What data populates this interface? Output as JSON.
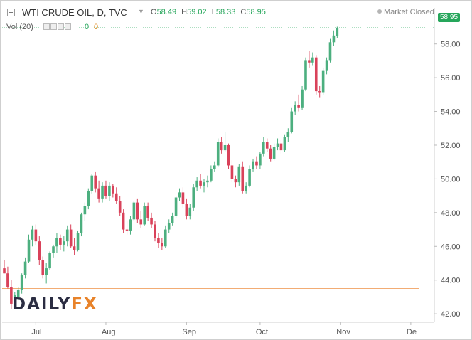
{
  "header": {
    "title": "WTI CRUDE OIL, D, TVC",
    "ohlc": [
      {
        "k": "O",
        "v": "58.49"
      },
      {
        "k": "H",
        "v": "59.02"
      },
      {
        "k": "L",
        "v": "58.33"
      },
      {
        "k": "C",
        "v": "58.95"
      }
    ],
    "market_status": "Market Closed"
  },
  "volume": {
    "label": "Vol (20)",
    "value_a": "0",
    "value_b": "0"
  },
  "last_price_label": "58.95",
  "logo": {
    "part1": "DAILY",
    "part2": "FX"
  },
  "colors": {
    "up": "#4caf7f",
    "down": "#d9425a",
    "support": "#f0a060",
    "axis_text": "#555555",
    "grid": "#eeeeee",
    "last_price": "#26a65b"
  },
  "chart_data": {
    "type": "candlestick",
    "title": "WTI CRUDE OIL, D, TVC",
    "ylim": [
      41.5,
      59.8
    ],
    "yticks": [
      42.0,
      44.0,
      46.0,
      48.0,
      50.0,
      52.0,
      54.0,
      56.0,
      58.0
    ],
    "ytick_labels": [
      "42.00",
      "44.00",
      "46.00",
      "48.00",
      "50.00",
      "52.00",
      "54.00",
      "56.00",
      "58.00"
    ],
    "xticks": [
      {
        "label": "Jul",
        "index": 9
      },
      {
        "label": "Aug",
        "index": 29
      },
      {
        "label": "Sep",
        "index": 52
      },
      {
        "label": "Oct",
        "index": 73
      },
      {
        "label": "Nov",
        "index": 96
      },
      {
        "label": "De",
        "index": 116
      }
    ],
    "support_level": 43.5,
    "last_price": 58.95,
    "grid": false,
    "candles": [
      [
        44.7,
        45.2,
        44.4,
        44.4
      ],
      [
        44.4,
        44.8,
        43.5,
        43.6
      ],
      [
        43.6,
        44.0,
        42.3,
        42.6
      ],
      [
        42.6,
        43.3,
        42.4,
        43.1
      ],
      [
        43.0,
        43.6,
        42.8,
        43.4
      ],
      [
        43.4,
        44.4,
        43.2,
        44.3
      ],
      [
        44.3,
        45.3,
        44.1,
        45.1
      ],
      [
        45.1,
        46.7,
        45.0,
        46.4
      ],
      [
        46.4,
        47.2,
        46.0,
        47.0
      ],
      [
        47.0,
        47.3,
        46.1,
        46.3
      ],
      [
        46.3,
        46.6,
        44.9,
        45.2
      ],
      [
        45.2,
        45.4,
        44.1,
        44.3
      ],
      [
        44.3,
        45.0,
        43.8,
        44.7
      ],
      [
        44.7,
        45.7,
        44.6,
        45.6
      ],
      [
        45.6,
        46.1,
        45.3,
        46.0
      ],
      [
        46.0,
        46.8,
        45.6,
        46.5
      ],
      [
        46.5,
        46.7,
        45.8,
        46.1
      ],
      [
        46.1,
        46.6,
        45.7,
        46.3
      ],
      [
        46.3,
        47.2,
        46.0,
        47.0
      ],
      [
        47.0,
        47.3,
        45.9,
        46.0
      ],
      [
        46.0,
        46.5,
        45.5,
        45.8
      ],
      [
        45.8,
        46.9,
        45.7,
        46.8
      ],
      [
        46.8,
        48.0,
        46.6,
        47.9
      ],
      [
        47.9,
        48.6,
        47.5,
        48.4
      ],
      [
        48.4,
        49.4,
        48.2,
        49.3
      ],
      [
        49.3,
        50.3,
        49.1,
        50.2
      ],
      [
        50.2,
        50.4,
        49.2,
        49.4
      ],
      [
        49.4,
        49.9,
        48.6,
        48.8
      ],
      [
        48.8,
        49.8,
        48.6,
        49.6
      ],
      [
        49.6,
        49.9,
        48.8,
        49.0
      ],
      [
        49.0,
        49.8,
        48.7,
        49.6
      ],
      [
        49.6,
        49.7,
        48.9,
        49.1
      ],
      [
        49.1,
        49.5,
        48.5,
        48.7
      ],
      [
        48.7,
        49.0,
        47.8,
        48.0
      ],
      [
        48.0,
        48.2,
        46.8,
        47.0
      ],
      [
        47.0,
        47.5,
        46.7,
        46.9
      ],
      [
        46.9,
        47.8,
        46.7,
        47.6
      ],
      [
        47.6,
        48.7,
        47.5,
        48.6
      ],
      [
        48.6,
        48.8,
        47.4,
        47.6
      ],
      [
        47.6,
        48.1,
        47.1,
        47.3
      ],
      [
        47.3,
        48.6,
        47.2,
        48.4
      ],
      [
        48.4,
        48.6,
        47.5,
        47.7
      ],
      [
        47.7,
        48.0,
        47.1,
        47.3
      ],
      [
        47.3,
        47.5,
        46.3,
        46.5
      ],
      [
        46.5,
        46.8,
        45.9,
        46.2
      ],
      [
        46.2,
        46.5,
        45.8,
        46.0
      ],
      [
        46.0,
        47.2,
        45.9,
        47.0
      ],
      [
        47.0,
        47.6,
        46.8,
        47.4
      ],
      [
        47.4,
        48.0,
        47.2,
        47.8
      ],
      [
        47.8,
        49.0,
        47.7,
        48.9
      ],
      [
        48.9,
        49.4,
        48.7,
        49.2
      ],
      [
        49.2,
        49.5,
        48.3,
        48.5
      ],
      [
        48.5,
        48.8,
        47.6,
        47.8
      ],
      [
        47.8,
        48.5,
        47.6,
        48.3
      ],
      [
        48.3,
        49.7,
        48.1,
        49.5
      ],
      [
        49.5,
        50.1,
        49.3,
        49.9
      ],
      [
        49.9,
        50.3,
        49.4,
        49.6
      ],
      [
        49.6,
        50.0,
        49.2,
        49.8
      ],
      [
        49.8,
        50.2,
        49.5,
        49.9
      ],
      [
        49.9,
        50.8,
        49.8,
        50.6
      ],
      [
        50.6,
        51.0,
        50.4,
        50.8
      ],
      [
        50.8,
        52.4,
        50.7,
        52.2
      ],
      [
        52.2,
        52.5,
        51.5,
        51.7
      ],
      [
        51.7,
        52.8,
        51.6,
        52.0
      ],
      [
        52.0,
        52.1,
        50.6,
        50.8
      ],
      [
        50.8,
        51.1,
        49.8,
        50.0
      ],
      [
        50.0,
        50.2,
        49.5,
        49.8
      ],
      [
        49.8,
        50.9,
        49.6,
        50.7
      ],
      [
        50.7,
        51.0,
        49.1,
        49.3
      ],
      [
        49.3,
        49.8,
        49.1,
        49.6
      ],
      [
        49.6,
        50.8,
        49.5,
        50.6
      ],
      [
        50.6,
        51.2,
        50.4,
        51.0
      ],
      [
        51.0,
        51.3,
        50.6,
        50.8
      ],
      [
        50.8,
        51.6,
        50.6,
        51.5
      ],
      [
        51.5,
        52.5,
        51.3,
        52.2
      ],
      [
        52.2,
        52.4,
        51.6,
        51.8
      ],
      [
        51.8,
        52.0,
        51.0,
        51.2
      ],
      [
        51.2,
        52.1,
        51.1,
        51.9
      ],
      [
        51.9,
        52.4,
        51.7,
        52.1
      ],
      [
        52.1,
        52.3,
        51.5,
        51.7
      ],
      [
        51.7,
        52.6,
        51.6,
        52.5
      ],
      [
        52.5,
        53.0,
        52.2,
        52.8
      ],
      [
        52.8,
        54.2,
        52.7,
        54.0
      ],
      [
        54.0,
        54.6,
        53.8,
        54.4
      ],
      [
        54.4,
        55.0,
        54.0,
        54.2
      ],
      [
        54.2,
        55.5,
        54.1,
        55.3
      ],
      [
        55.3,
        57.2,
        55.2,
        57.0
      ],
      [
        57.0,
        57.6,
        56.6,
        56.9
      ],
      [
        56.9,
        57.5,
        56.7,
        57.2
      ],
      [
        57.2,
        57.3,
        55.0,
        55.2
      ],
      [
        55.2,
        55.5,
        54.8,
        55.1
      ],
      [
        55.1,
        56.6,
        55.0,
        56.4
      ],
      [
        56.4,
        57.2,
        56.2,
        57.0
      ],
      [
        57.0,
        58.3,
        56.9,
        58.1
      ],
      [
        58.1,
        58.8,
        57.9,
        58.5
      ],
      [
        58.49,
        59.02,
        58.33,
        58.95
      ]
    ]
  }
}
